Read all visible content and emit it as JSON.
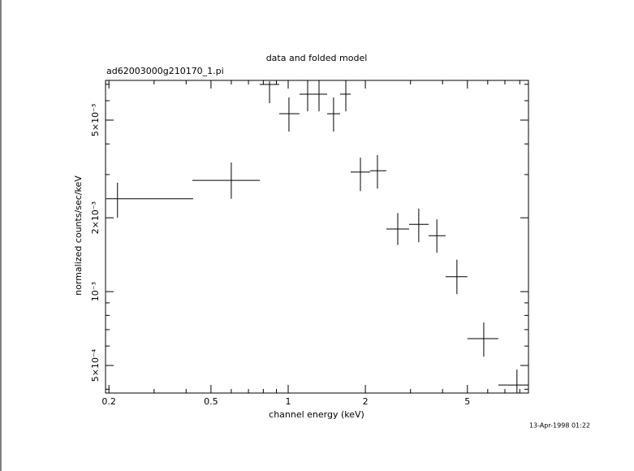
{
  "chart_data": {
    "type": "errorbar",
    "title": "data and folded model",
    "subtitle": "ad62003000g210170_1.pi",
    "x_label": "channel energy (keV)",
    "y_label": "normalized counts/sec/keV",
    "timestamp": "13-Apr-1998 01:22",
    "x_log": true,
    "y_log": true,
    "color": "#000000",
    "xlim": [
      0.194,
      8.65
    ],
    "ylim": [
      0.000386,
      0.00726
    ],
    "xticks": [
      0.2,
      0.5,
      1,
      2,
      5
    ],
    "xminorticks": [
      0.3,
      0.4,
      0.6,
      0.7,
      0.8,
      0.9,
      3,
      4,
      6,
      7,
      8
    ],
    "yticks": [
      {
        "value": 0.0005,
        "label": "5×10⁻⁴"
      },
      {
        "value": 0.001,
        "label": "10⁻³"
      },
      {
        "value": 0.002,
        "label": "2×10⁻³"
      },
      {
        "value": 0.005,
        "label": "5×10⁻³"
      }
    ],
    "yminorticks": [
      0.0004,
      0.0006,
      0.0007,
      0.0008,
      0.0009,
      0.003,
      0.004,
      0.006,
      0.007
    ],
    "series": [
      {
        "x": [
          0.216,
          0.6,
          0.846,
          1.007,
          1.191,
          1.319,
          1.503,
          1.678,
          1.913,
          2.229,
          2.675,
          3.23,
          3.8,
          4.55,
          5.79,
          7.8
        ],
        "x_low": [
          0.195,
          0.423,
          0.775,
          0.923,
          1.107,
          1.253,
          1.419,
          1.594,
          1.753,
          2.088,
          2.414,
          2.963,
          3.53,
          4.11,
          5.0,
          6.6
        ],
        "x_high": [
          0.426,
          0.775,
          0.923,
          1.107,
          1.253,
          1.419,
          1.594,
          1.753,
          2.088,
          2.414,
          2.963,
          3.53,
          4.11,
          5.0,
          6.6,
          8.65
        ],
        "y": [
          0.00239,
          0.00284,
          0.00699,
          0.00531,
          0.00638,
          0.00638,
          0.00531,
          0.00638,
          0.00307,
          0.00311,
          0.0018,
          0.00188,
          0.00169,
          0.00115,
          0.000643,
          0.000416
        ],
        "y_low": [
          0.002,
          0.00239,
          0.00586,
          0.00449,
          0.00543,
          0.00543,
          0.00449,
          0.00543,
          0.00257,
          0.00263,
          0.00155,
          0.00159,
          0.00144,
          0.000977,
          0.000543,
          0.00036
        ],
        "y_high": [
          0.00278,
          0.00336,
          0.0072,
          0.00619,
          0.00731,
          0.00731,
          0.00619,
          0.00731,
          0.00352,
          0.0036,
          0.00209,
          0.00218,
          0.00197,
          0.00135,
          0.000748,
          0.000481
        ]
      }
    ]
  }
}
